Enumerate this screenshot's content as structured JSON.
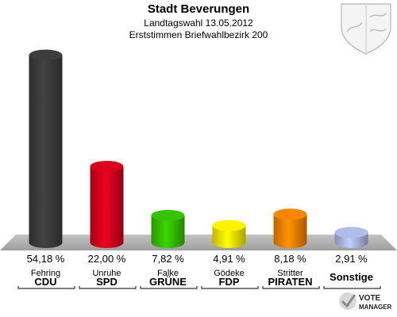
{
  "header": {
    "title": "Stadt Beverungen",
    "subtitle1": "Landtagswahl 13.05.2012",
    "subtitle2": "Erststimmen Briefwahlbezirk 200"
  },
  "branding": {
    "vote_line1": "VOTE",
    "vote_line2": "MANAGER"
  },
  "chart_data": {
    "type": "bar",
    "categories": [
      "CDU",
      "SPD",
      "GRÜNE",
      "FDP",
      "PIRATEN",
      "Sonstige"
    ],
    "candidates": [
      "Fehring",
      "Unruhe",
      "Falke",
      "Gödeke",
      "Stritter",
      ""
    ],
    "values": [
      54.18,
      22.0,
      7.82,
      4.91,
      8.18,
      2.91
    ],
    "value_labels": [
      "54,18 %",
      "22,00 %",
      "7,82 %",
      "4,91 %",
      "8,18 %",
      "2,91 %"
    ],
    "colors": [
      "#3a3a3a",
      "#d0021b",
      "#33bb00",
      "#f2e600",
      "#f08000",
      "#a8b4e0"
    ],
    "title": "Stadt Beverungen",
    "ylim": [
      0,
      55
    ]
  }
}
